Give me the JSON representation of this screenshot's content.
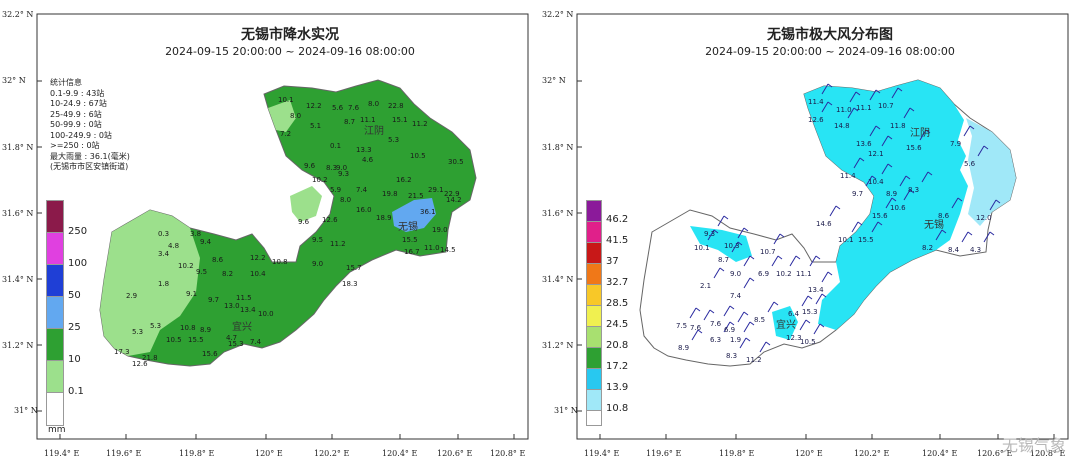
{
  "left_map": {
    "title": "无锡市降水实况",
    "subtitle": "2024-09-15 20:00:00 ~ 2024-09-16 08:00:00",
    "stats": [
      "统计信息",
      "0.1-9.9 : 43站",
      "10-24.9 : 67站",
      "25-49.9 : 6站",
      "50-99.9 : 0站",
      "100-249.9 : 0站",
      ">=250 : 0站",
      "最大雨量 : 36.1(毫米)",
      "(无锡市市区安镇街道)"
    ],
    "legend": [
      {
        "label": "250",
        "color": "#8b1a4a"
      },
      {
        "label": "100",
        "color": "#e040e0"
      },
      {
        "label": "50",
        "color": "#1f3fd6"
      },
      {
        "label": "25",
        "color": "#62a8f0"
      },
      {
        "label": "10",
        "color": "#2ea032"
      },
      {
        "label": "0.1",
        "color": "#9ce08c"
      },
      {
        "label": "",
        "color": "#ffffff"
      }
    ],
    "legend_unit": "mm",
    "y_ticks": [
      "32.2° N",
      "32° N",
      "31.8° N",
      "31.6° N",
      "31.4° N",
      "31.2° N",
      "31° N"
    ],
    "x_ticks": [
      "119.4° E",
      "119.6° E",
      "119.8° E",
      "120° E",
      "120.2° E",
      "120.4° E",
      "120.6° E",
      "120.8° E"
    ],
    "place_labels": [
      "江阴",
      "无锡",
      "宜兴"
    ],
    "values": [
      "10.1",
      "12.2",
      "5.6",
      "7.6",
      "8.0",
      "22.8",
      "8.0",
      "5.1",
      "8.7",
      "11.1",
      "15.1",
      "11.2",
      "7.2",
      "0.1",
      "5.3",
      "13.3",
      "4.6",
      "9.0",
      "10.5",
      "9.6",
      "8.3",
      "9.3",
      "16.2",
      "30.5",
      "10.2",
      "7.4",
      "19.8",
      "21.5",
      "29.1",
      "22.9",
      "5.9",
      "16.0",
      "36.1",
      "14.2",
      "8.0",
      "9.6",
      "12.6",
      "18.9",
      "19.0",
      "9.5",
      "11.2",
      "15.5",
      "16.7",
      "11.0",
      "14.5",
      "0.3",
      "3.8",
      "4.8",
      "9.4",
      "3.4",
      "8.6",
      "10.2",
      "9.5",
      "8.2",
      "10.4",
      "12.2",
      "10.8",
      "1.8",
      "9.1",
      "9.0",
      "15.7",
      "2.9",
      "9.7",
      "11.5",
      "18.3",
      "13.0",
      "13.4",
      "5.3",
      "5.3",
      "10.8",
      "8.9",
      "10.0",
      "10.5",
      "15.5",
      "4.7",
      "17.3",
      "15.3",
      "7.4",
      "12.6",
      "21.8",
      "15.6"
    ]
  },
  "right_map": {
    "title": "无锡市极大风分布图",
    "subtitle": "2024-09-15 20:00:00 ~ 2024-09-16 08:00:00",
    "legend": [
      {
        "label": "46.2",
        "color": "#8b1a9a"
      },
      {
        "label": "41.5",
        "color": "#e0208a"
      },
      {
        "label": "37",
        "color": "#c81818"
      },
      {
        "label": "32.7",
        "color": "#f07818"
      },
      {
        "label": "28.5",
        "color": "#f8c828"
      },
      {
        "label": "24.5",
        "color": "#f0f050"
      },
      {
        "label": "20.8",
        "color": "#a8e070"
      },
      {
        "label": "17.2",
        "color": "#2ea032"
      },
      {
        "label": "13.9",
        "color": "#28c8f0"
      },
      {
        "label": "10.8",
        "color": "#a0e8f8"
      },
      {
        "label": "",
        "color": "#ffffff"
      }
    ],
    "y_ticks": [
      "32.2° N",
      "32° N",
      "31.8° N",
      "31.6° N",
      "31.4° N",
      "31.2° N",
      "31° N"
    ],
    "x_ticks": [
      "119.4° E",
      "119.6° E",
      "119.8° E",
      "120° E",
      "120.2° E",
      "120.4° E",
      "120.6° E",
      "120.8° E"
    ],
    "place_labels": [
      "江阴",
      "无锡",
      "宜兴"
    ],
    "values": [
      "11.4",
      "11.0",
      "11.1",
      "10.7",
      "12.6",
      "14.8",
      "11.8",
      "7.9",
      "13.6",
      "12.1",
      "15.6",
      "5.6",
      "11.4",
      "10.4",
      "8.9",
      "9.7",
      "8.3",
      "10.6",
      "14.6",
      "15.6",
      "8.6",
      "12.0",
      "10.1",
      "15.5",
      "8.2",
      "8.4",
      "4.3",
      "9.3",
      "10.1",
      "10.3",
      "8.7",
      "10.7",
      "9.0",
      "10.2",
      "6.9",
      "11.1",
      "2.1",
      "7.4",
      "6.4",
      "13.4",
      "15.3",
      "7.5",
      "7.6",
      "7.6",
      "6.9",
      "6.3",
      "1.9",
      "12.3",
      "8.5",
      "10.5",
      "8.9",
      "8.3",
      "11.2"
    ],
    "watermark": "无锡气象"
  }
}
